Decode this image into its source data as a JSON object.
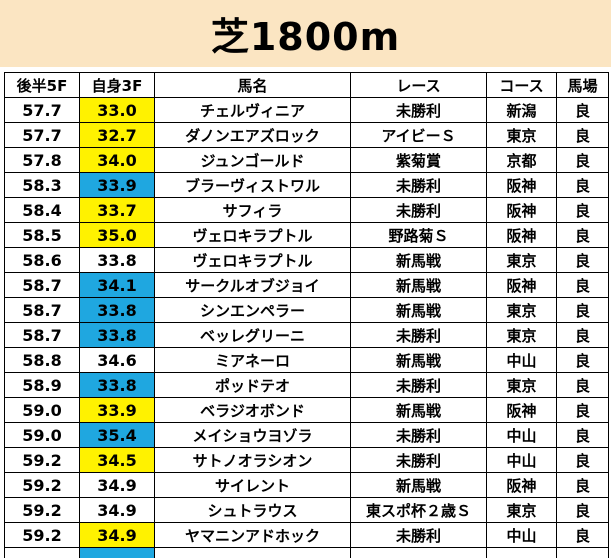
{
  "title": "芝1800m",
  "headers": [
    "後半5F",
    "自身3F",
    "馬名",
    "レース",
    "コース",
    "馬場"
  ],
  "rows": [
    {
      "late5f": "57.7",
      "own3f": "33.0",
      "hl": "yellow",
      "horse": "チェルヴィニア",
      "race": "未勝利",
      "course": "新潟",
      "going": "良"
    },
    {
      "late5f": "57.7",
      "own3f": "32.7",
      "hl": "yellow",
      "horse": "ダノンエアズロック",
      "race": "アイビーＳ",
      "course": "東京",
      "going": "良"
    },
    {
      "late5f": "57.8",
      "own3f": "34.0",
      "hl": "yellow",
      "horse": "ジュンゴールド",
      "race": "紫菊賞",
      "course": "京都",
      "going": "良"
    },
    {
      "late5f": "58.3",
      "own3f": "33.9",
      "hl": "blue",
      "horse": "ブラーヴィストワル",
      "race": "未勝利",
      "course": "阪神",
      "going": "良"
    },
    {
      "late5f": "58.4",
      "own3f": "33.7",
      "hl": "yellow",
      "horse": "サフィラ",
      "race": "未勝利",
      "course": "阪神",
      "going": "良"
    },
    {
      "late5f": "58.5",
      "own3f": "35.0",
      "hl": "yellow",
      "horse": "ヴェロキラプトル",
      "race": "野路菊Ｓ",
      "course": "阪神",
      "going": "良"
    },
    {
      "late5f": "58.6",
      "own3f": "33.8",
      "hl": "",
      "horse": "ヴェロキラプトル",
      "race": "新馬戦",
      "course": "東京",
      "going": "良"
    },
    {
      "late5f": "58.7",
      "own3f": "34.1",
      "hl": "blue",
      "horse": "サークルオブジョイ",
      "race": "新馬戦",
      "course": "阪神",
      "going": "良"
    },
    {
      "late5f": "58.7",
      "own3f": "33.8",
      "hl": "blue",
      "horse": "シンエンペラー",
      "race": "新馬戦",
      "course": "東京",
      "going": "良"
    },
    {
      "late5f": "58.7",
      "own3f": "33.8",
      "hl": "blue",
      "horse": "ベッレグリーニ",
      "race": "未勝利",
      "course": "東京",
      "going": "良"
    },
    {
      "late5f": "58.8",
      "own3f": "34.6",
      "hl": "",
      "horse": "ミアネーロ",
      "race": "新馬戦",
      "course": "中山",
      "going": "良"
    },
    {
      "late5f": "58.9",
      "own3f": "33.8",
      "hl": "blue",
      "horse": "ポッドテオ",
      "race": "未勝利",
      "course": "東京",
      "going": "良"
    },
    {
      "late5f": "59.0",
      "own3f": "33.9",
      "hl": "yellow",
      "horse": "ベラジオボンド",
      "race": "新馬戦",
      "course": "阪神",
      "going": "良"
    },
    {
      "late5f": "59.0",
      "own3f": "35.4",
      "hl": "blue",
      "horse": "メイショウヨゾラ",
      "race": "未勝利",
      "course": "中山",
      "going": "良"
    },
    {
      "late5f": "59.2",
      "own3f": "34.5",
      "hl": "yellow",
      "horse": "サトノオラシオン",
      "race": "未勝利",
      "course": "中山",
      "going": "良"
    },
    {
      "late5f": "59.2",
      "own3f": "34.9",
      "hl": "",
      "horse": "サイレント",
      "race": "新馬戦",
      "course": "阪神",
      "going": "良"
    },
    {
      "late5f": "59.2",
      "own3f": "34.9",
      "hl": "",
      "horse": "シュトラウス",
      "race": "東スポ杯２歳Ｓ",
      "course": "東京",
      "going": "良"
    },
    {
      "late5f": "59.2",
      "own3f": "34.9",
      "hl": "yellow",
      "horse": "ヤマニンアドホック",
      "race": "未勝利",
      "course": "中山",
      "going": "良"
    }
  ],
  "colors": {
    "title_bg": "#fbe5c2",
    "yellow": "#fff200",
    "blue": "#1fa7e0"
  }
}
